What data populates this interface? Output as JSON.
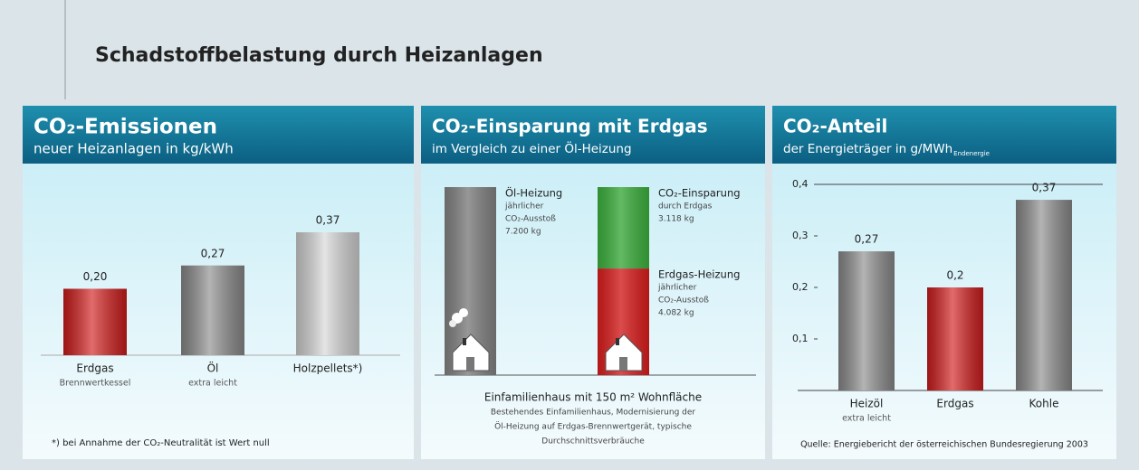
{
  "title": "Schadstoffbelastung durch Heizanlagen",
  "chart_data": [
    {
      "type": "bar",
      "title": "CO₂-Emissionen",
      "subtitle": "neuer Heizanlagen in kg/kWh",
      "categories": [
        "Erdgas",
        "Öl",
        "Holzpellets*)"
      ],
      "sublabels": [
        "Brennwertkessel",
        "extra leicht",
        null
      ],
      "values": [
        0.2,
        0.27,
        0.37
      ],
      "value_labels": [
        "0,20",
        "0,27",
        "0,37"
      ],
      "colors": [
        "#d21c1c",
        "#8c8c8c",
        "#d6d6d6"
      ],
      "footnote": "*) bei Annahme der CO₂-Neutralität ist Wert null"
    },
    {
      "type": "stacked",
      "title": "CO₂-Einsparung mit Erdgas",
      "subtitle": "im Vergleich zu einer Öl-Heizung",
      "series": [
        {
          "name": "Öl-Heizung",
          "lines": [
            "jährlicher",
            "CO₂-Ausstoß"
          ],
          "color": "#7c7c7c",
          "values": [
            7200,
            null
          ],
          "value_labels": [
            "7.200 kg",
            null
          ]
        },
        {
          "name": "Erdgas-Heizung",
          "lines": [
            "jährlicher",
            "CO₂-Ausstoß"
          ],
          "color": "#d21c1c",
          "values": [
            null,
            4082
          ],
          "value_labels": [
            null,
            "4.082 kg"
          ]
        },
        {
          "name": "CO₂-Einsparung",
          "lines": [
            "durch Erdgas"
          ],
          "color": "#3aa83a",
          "values": [
            null,
            3118
          ],
          "value_labels": [
            null,
            "3.118 kg"
          ]
        }
      ],
      "caption": "Einfamilienhaus mit 150 m² Wohnfläche",
      "notes": [
        "Bestehendes Einfamilienhaus, Modernisierung der",
        "Öl-Heizung auf Erdgas-Brennwertgerät, typische",
        "Durchschnittsverbräuche"
      ]
    },
    {
      "type": "bar",
      "title": "CO₂-Anteil",
      "subtitle": "der Energieträger in g/MWh",
      "subtitle_sub": "Endenergie",
      "categories": [
        "Heizöl",
        "Erdgas",
        "Kohle"
      ],
      "sublabels": [
        "extra leicht",
        null,
        null
      ],
      "values": [
        0.27,
        0.2,
        0.37
      ],
      "value_labels": [
        "0,27",
        "0,2",
        "0,37"
      ],
      "colors": [
        "#8c8c8c",
        "#d21c1c",
        "#8c8c8c"
      ],
      "ylim": [
        0,
        0.4
      ],
      "yticks": [
        {
          "value": 0.1,
          "label": "0,1"
        },
        {
          "value": 0.2,
          "label": "0,2"
        },
        {
          "value": 0.3,
          "label": "0,3"
        },
        {
          "value": 0.4,
          "label": "0,4"
        }
      ],
      "source": "Quelle: Energiebericht der österreichischen Bundesregierung 2003"
    }
  ]
}
